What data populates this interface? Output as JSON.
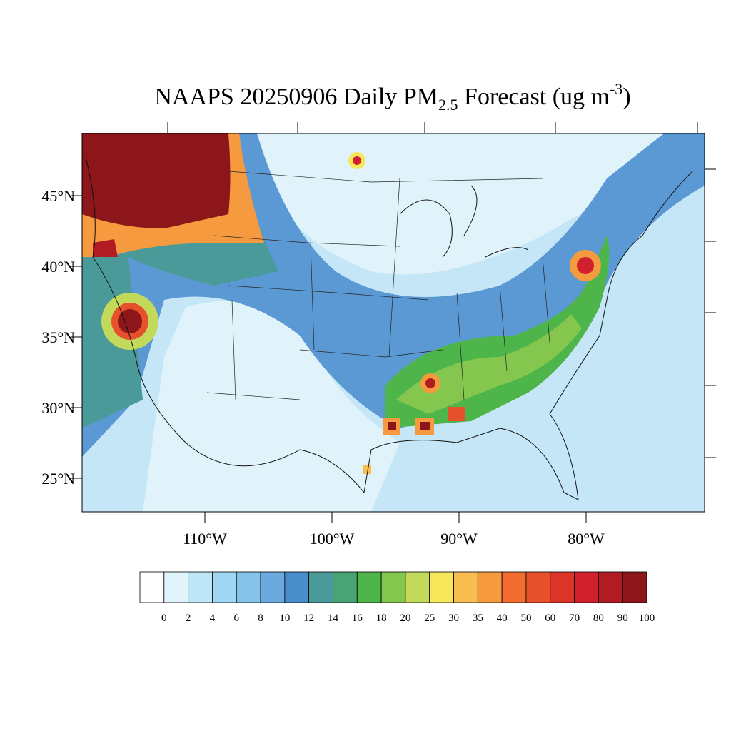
{
  "title": {
    "text": "NAAPS 20250906 Daily PM",
    "subscript": "2.5",
    "text2": " Forecast (ug m",
    "superscript": "-3",
    "text3": ")"
  },
  "latitude_labels": [
    {
      "value": 45,
      "label": "45°N"
    },
    {
      "value": 40,
      "label": "40°N"
    },
    {
      "value": 35,
      "label": "35°N"
    },
    {
      "value": 30,
      "label": "30°N"
    },
    {
      "value": 25,
      "label": "25°N"
    }
  ],
  "longitude_labels": [
    {
      "value": -110,
      "label": "110°W"
    },
    {
      "value": -100,
      "label": "100°W"
    },
    {
      "value": -90,
      "label": "90°W"
    },
    {
      "value": -80,
      "label": "80°W"
    }
  ],
  "colorbar": {
    "colors": [
      "#ffffff",
      "#e0f3fb",
      "#bfe6f7",
      "#a0d8f3",
      "#86c3ea",
      "#6aaadf",
      "#4a8dcb",
      "#4a9a9a",
      "#48a474",
      "#4db54a",
      "#85c64f",
      "#c3d95a",
      "#f6e65a",
      "#f7be4f",
      "#f69a3f",
      "#f26d2f",
      "#e6502d",
      "#dd3428",
      "#d0202d",
      "#b01c22",
      "#8c1619"
    ],
    "levels": [
      0,
      2,
      4,
      6,
      8,
      10,
      12,
      14,
      16,
      18,
      20,
      25,
      30,
      35,
      40,
      50,
      60,
      70,
      80,
      90,
      100
    ]
  }
}
